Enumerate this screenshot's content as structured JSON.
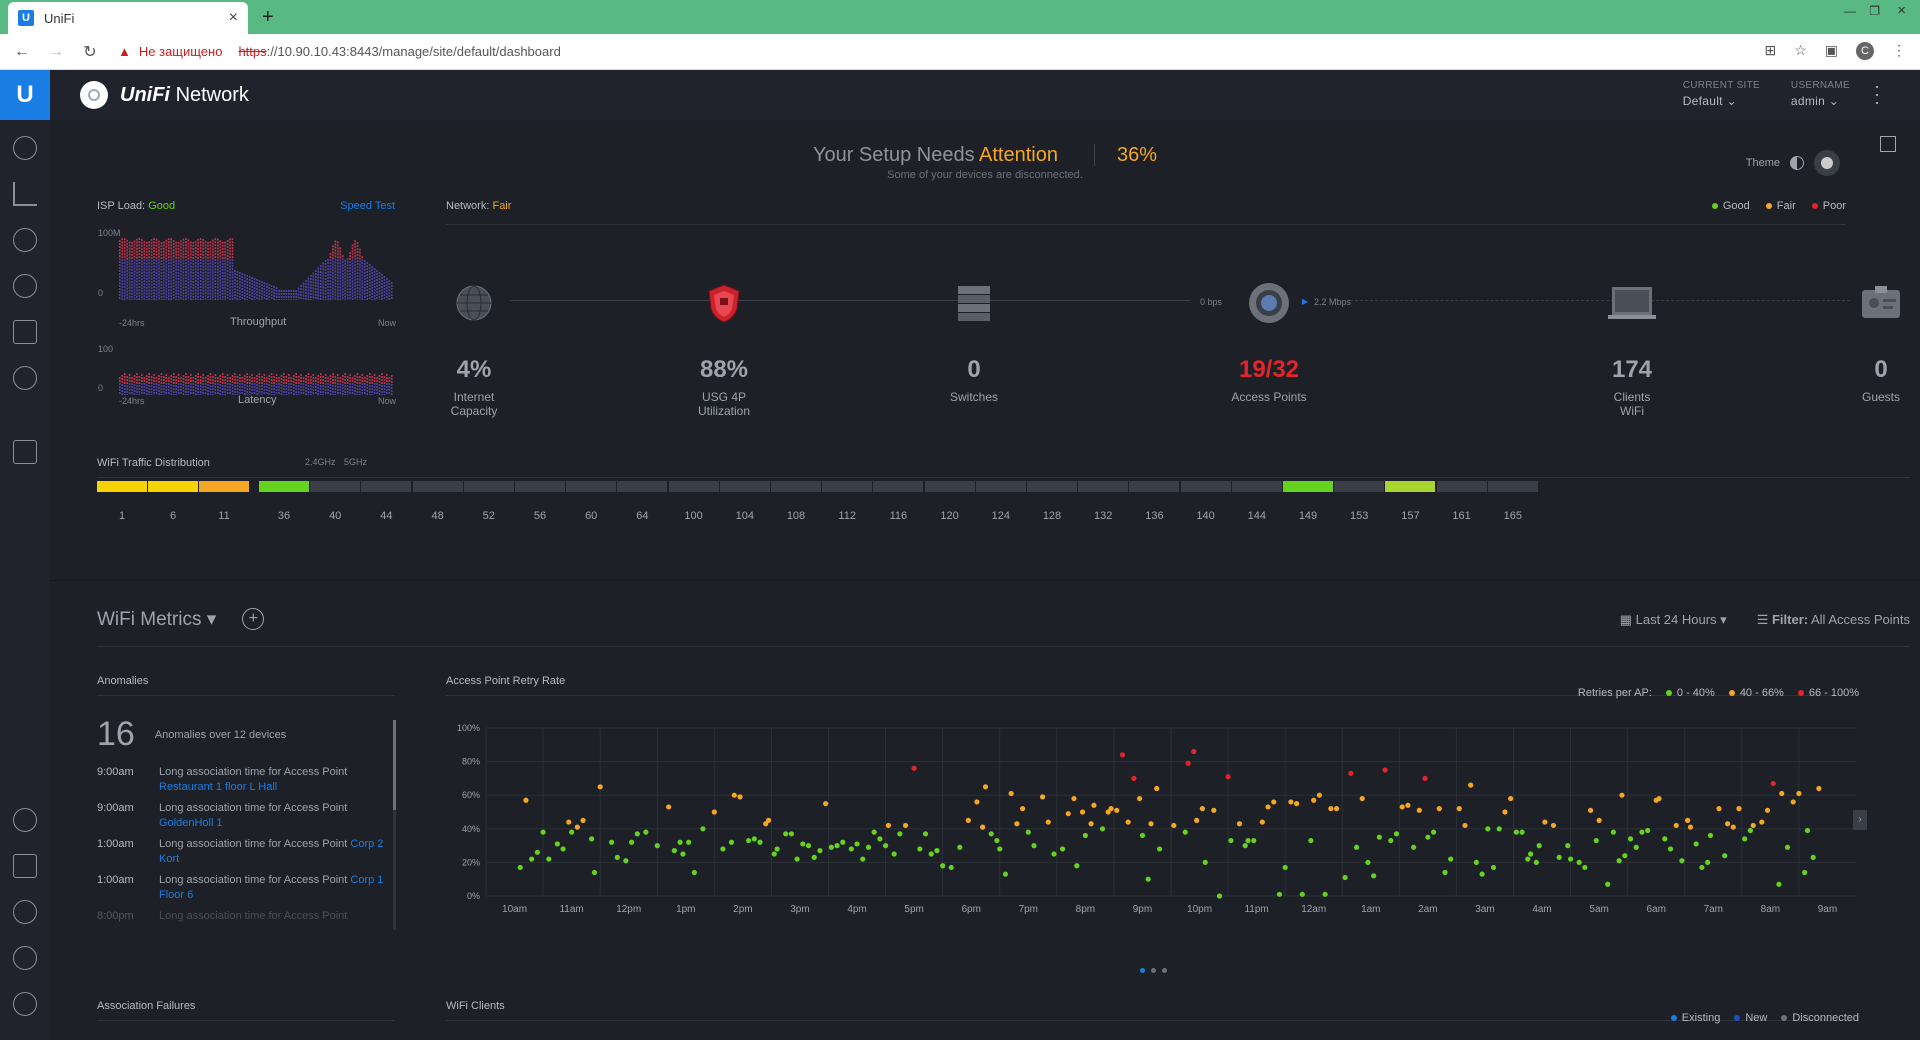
{
  "browser": {
    "tab_title": "UniFi",
    "favicon_letter": "U",
    "insecure_label": "Не защищено",
    "url_scheme": "https",
    "url_rest": "://10.90.10.43:8443/manage/site/default/dashboard",
    "profile_letter": "C"
  },
  "app": {
    "brand": "UniFi",
    "product": "Network",
    "current_site_label": "CURRENT SITE",
    "current_site_value": "Default",
    "username_label": "USERNAME",
    "username_value": "admin"
  },
  "attention": {
    "title_prefix": "Your Setup Needs",
    "title_highlight": "Attention",
    "percent": "36%",
    "subtitle": "Some of your devices are disconnected.",
    "theme_label": "Theme"
  },
  "isp": {
    "label": "ISP Load:",
    "status": "Good",
    "speed_test": "Speed Test",
    "throughput_max": "100M",
    "throughput_min": "0",
    "latency_max": "100",
    "latency_min": "0",
    "start": "-24hrs",
    "end": "Now",
    "throughput_label": "Throughput",
    "latency_label": "Latency"
  },
  "network": {
    "label": "Network:",
    "status": "Fair",
    "legend": [
      "Good",
      "Fair",
      "Poor"
    ],
    "rate_down": "0 bps",
    "rate_up": "2.2 Mbps",
    "nodes": [
      {
        "value": "4%",
        "label1": "Internet",
        "label2": "Capacity"
      },
      {
        "value": "88%",
        "label1": "USG 4P",
        "label2": "Utilization"
      },
      {
        "value": "0",
        "label1": "Switches",
        "label2": ""
      },
      {
        "value": "19/32",
        "label1": "Access Points",
        "label2": ""
      },
      {
        "value": "174",
        "label1": "Clients",
        "label2": "WiFi"
      },
      {
        "value": "0",
        "label1": "Guests",
        "label2": ""
      }
    ]
  },
  "wifi_traffic": {
    "title": "WiFi Traffic Distribution",
    "band_24": "2.4GHz",
    "band_5": "5GHz",
    "channels_24": [
      "1",
      "6",
      "11"
    ],
    "channels_5": [
      "36",
      "40",
      "44",
      "48",
      "52",
      "56",
      "60",
      "64",
      "100",
      "104",
      "108",
      "112",
      "116",
      "120",
      "124",
      "128",
      "132",
      "136",
      "140",
      "144",
      "149",
      "153",
      "157",
      "161",
      "165"
    ]
  },
  "wifi_metrics": {
    "title": "WiFi Metrics",
    "range": "Last 24 Hours",
    "filter_label": "Filter:",
    "filter_value": "All Access Points"
  },
  "anomalies": {
    "title": "Anomalies",
    "count": "16",
    "summary": "Anomalies over 12 devices",
    "items": [
      {
        "time": "9:00am",
        "text": "Long association time for Access Point",
        "link": "Restaurant 1 floor L Hall"
      },
      {
        "time": "9:00am",
        "text": "Long association time for Access Point",
        "link": "GoldenHoll 1"
      },
      {
        "time": "1:00am",
        "text": "Long association time for Access Point",
        "link": "Corp 2 Kort"
      },
      {
        "time": "1:00am",
        "text": "Long association time for Access Point",
        "link": "Corp 1 Floor 6"
      },
      {
        "time": "8:00pm",
        "text": "Long association time for Access Point",
        "link": ""
      }
    ]
  },
  "association_failures": {
    "title": "Association Failures"
  },
  "wifi_clients": {
    "title": "WiFi Clients",
    "legend": [
      "Existing",
      "New",
      "Disconnected"
    ]
  },
  "chart_data": {
    "type": "scatter",
    "title": "Access Point Retry Rate",
    "legend_title": "Retries per AP:",
    "legend": [
      "0 - 40%",
      "40 - 66%",
      "66 - 100%"
    ],
    "colors": {
      "low": "#64d21e",
      "mid": "#f5a623",
      "high": "#e3242b"
    },
    "y_ticks": [
      "100%",
      "80%",
      "60%",
      "40%",
      "20%",
      "0%"
    ],
    "ylim": [
      0,
      100
    ],
    "x_ticks": [
      "10am",
      "11am",
      "12pm",
      "1pm",
      "2pm",
      "3pm",
      "4pm",
      "5pm",
      "6pm",
      "7pm",
      "8pm",
      "9pm",
      "10pm",
      "11pm",
      "12am",
      "1am",
      "2am",
      "3am",
      "4am",
      "5am",
      "6am",
      "7am",
      "8am",
      "9am"
    ],
    "points": [
      [
        0.1,
        17
      ],
      [
        0.2,
        57
      ],
      [
        0.3,
        22
      ],
      [
        0.4,
        26
      ],
      [
        0.5,
        38
      ],
      [
        0.6,
        22
      ],
      [
        0.75,
        31
      ],
      [
        0.85,
        28
      ],
      [
        1.0,
        38
      ],
      [
        1.1,
        41
      ],
      [
        1.2,
        45
      ],
      [
        0.95,
        44
      ],
      [
        1.35,
        34
      ],
      [
        1.4,
        14
      ],
      [
        1.5,
        65
      ],
      [
        1.7,
        32
      ],
      [
        1.8,
        23
      ],
      [
        1.95,
        21
      ],
      [
        2.05,
        32
      ],
      [
        2.15,
        37
      ],
      [
        2.3,
        38
      ],
      [
        2.5,
        30
      ],
      [
        2.7,
        53
      ],
      [
        2.8,
        27
      ],
      [
        2.9,
        32
      ],
      [
        2.95,
        25
      ],
      [
        3.05,
        32
      ],
      [
        3.15,
        14
      ],
      [
        3.3,
        40
      ],
      [
        3.5,
        50
      ],
      [
        3.65,
        28
      ],
      [
        3.8,
        32
      ],
      [
        3.85,
        60
      ],
      [
        3.95,
        59
      ],
      [
        4.1,
        33
      ],
      [
        4.2,
        34
      ],
      [
        4.3,
        32
      ],
      [
        4.4,
        43
      ],
      [
        4.45,
        45
      ],
      [
        4.55,
        25
      ],
      [
        4.6,
        28
      ],
      [
        4.75,
        37
      ],
      [
        4.85,
        37
      ],
      [
        4.95,
        22
      ],
      [
        5.05,
        31
      ],
      [
        5.15,
        30
      ],
      [
        5.25,
        23
      ],
      [
        5.35,
        27
      ],
      [
        5.45,
        55
      ],
      [
        5.55,
        29
      ],
      [
        5.65,
        30
      ],
      [
        5.75,
        32
      ],
      [
        5.9,
        28
      ],
      [
        6.0,
        31
      ],
      [
        6.1,
        22
      ],
      [
        6.2,
        29
      ],
      [
        6.3,
        38
      ],
      [
        6.4,
        34
      ],
      [
        6.5,
        30
      ],
      [
        6.55,
        42
      ],
      [
        6.65,
        25
      ],
      [
        6.75,
        37
      ],
      [
        6.85,
        42
      ],
      [
        7.0,
        76
      ],
      [
        7.1,
        28
      ],
      [
        7.2,
        37
      ],
      [
        7.3,
        25
      ],
      [
        7.4,
        27
      ],
      [
        7.5,
        18
      ],
      [
        7.65,
        17
      ],
      [
        7.8,
        29
      ],
      [
        7.95,
        45
      ],
      [
        8.1,
        56
      ],
      [
        8.2,
        41
      ],
      [
        8.25,
        65
      ],
      [
        8.35,
        37
      ],
      [
        8.45,
        33
      ],
      [
        8.5,
        28
      ],
      [
        8.6,
        13
      ],
      [
        8.7,
        61
      ],
      [
        8.8,
        43
      ],
      [
        8.9,
        52
      ],
      [
        9.0,
        38
      ],
      [
        9.1,
        30
      ],
      [
        9.25,
        59
      ],
      [
        9.35,
        44
      ],
      [
        9.45,
        25
      ],
      [
        9.6,
        28
      ],
      [
        9.7,
        49
      ],
      [
        9.8,
        58
      ],
      [
        9.85,
        18
      ],
      [
        9.95,
        50
      ],
      [
        10.0,
        36
      ],
      [
        10.1,
        43
      ],
      [
        10.15,
        54
      ],
      [
        10.3,
        40
      ],
      [
        10.4,
        50
      ],
      [
        10.45,
        52
      ],
      [
        10.55,
        51
      ],
      [
        10.65,
        84
      ],
      [
        10.75,
        44
      ],
      [
        10.85,
        70
      ],
      [
        10.95,
        58
      ],
      [
        11.0,
        36
      ],
      [
        11.1,
        10
      ],
      [
        11.15,
        43
      ],
      [
        11.25,
        64
      ],
      [
        11.3,
        28
      ],
      [
        11.55,
        42
      ],
      [
        11.75,
        38
      ],
      [
        11.8,
        79
      ],
      [
        11.9,
        86
      ],
      [
        11.95,
        45
      ],
      [
        12.05,
        52
      ],
      [
        12.1,
        20
      ],
      [
        12.25,
        51
      ],
      [
        12.35,
        0
      ],
      [
        12.5,
        71
      ],
      [
        12.55,
        33
      ],
      [
        12.7,
        43
      ],
      [
        12.8,
        30
      ],
      [
        12.85,
        33
      ],
      [
        12.95,
        33
      ],
      [
        13.1,
        44
      ],
      [
        13.2,
        53
      ],
      [
        13.3,
        56
      ],
      [
        13.4,
        1
      ],
      [
        13.5,
        17
      ],
      [
        13.6,
        56
      ],
      [
        13.7,
        55
      ],
      [
        13.8,
        1
      ],
      [
        13.95,
        33
      ],
      [
        14.0,
        57
      ],
      [
        14.1,
        60
      ],
      [
        14.2,
        1
      ],
      [
        14.3,
        52
      ],
      [
        14.4,
        52
      ],
      [
        14.55,
        11
      ],
      [
        14.65,
        73
      ],
      [
        14.75,
        29
      ],
      [
        14.85,
        58
      ],
      [
        14.95,
        20
      ],
      [
        15.05,
        12
      ],
      [
        15.15,
        35
      ],
      [
        15.25,
        75
      ],
      [
        15.35,
        33
      ],
      [
        15.45,
        37
      ],
      [
        15.55,
        53
      ],
      [
        15.65,
        54
      ],
      [
        15.75,
        29
      ],
      [
        15.85,
        51
      ],
      [
        15.95,
        70
      ],
      [
        16.0,
        35
      ],
      [
        16.1,
        38
      ],
      [
        16.2,
        52
      ],
      [
        16.3,
        14
      ],
      [
        16.4,
        22
      ],
      [
        16.55,
        52
      ],
      [
        16.65,
        42
      ],
      [
        16.75,
        66
      ],
      [
        16.85,
        20
      ],
      [
        16.95,
        13
      ],
      [
        17.05,
        40
      ],
      [
        17.15,
        17
      ],
      [
        17.25,
        40
      ],
      [
        17.35,
        50
      ],
      [
        17.45,
        58
      ],
      [
        17.55,
        38
      ],
      [
        17.65,
        38
      ],
      [
        17.75,
        22
      ],
      [
        17.8,
        25
      ],
      [
        17.9,
        20
      ],
      [
        17.95,
        30
      ],
      [
        18.05,
        44
      ],
      [
        18.2,
        42
      ],
      [
        18.3,
        23
      ],
      [
        18.45,
        30
      ],
      [
        18.5,
        22
      ],
      [
        18.65,
        20
      ],
      [
        18.75,
        17
      ],
      [
        18.85,
        51
      ],
      [
        18.95,
        33
      ],
      [
        19.0,
        45
      ],
      [
        19.15,
        7
      ],
      [
        19.25,
        38
      ],
      [
        19.35,
        21
      ],
      [
        19.4,
        60
      ],
      [
        19.45,
        24
      ],
      [
        19.55,
        34
      ],
      [
        19.65,
        29
      ],
      [
        19.75,
        38
      ],
      [
        19.85,
        39
      ],
      [
        20.0,
        57
      ],
      [
        20.05,
        58
      ],
      [
        20.15,
        34
      ],
      [
        20.25,
        28
      ],
      [
        20.35,
        42
      ],
      [
        20.45,
        21
      ],
      [
        20.55,
        45
      ],
      [
        20.6,
        41
      ],
      [
        20.7,
        31
      ],
      [
        20.8,
        17
      ],
      [
        20.9,
        20
      ],
      [
        20.95,
        36
      ],
      [
        21.1,
        52
      ],
      [
        21.2,
        24
      ],
      [
        21.25,
        43
      ],
      [
        21.35,
        41
      ],
      [
        21.45,
        52
      ],
      [
        21.55,
        34
      ],
      [
        21.65,
        39
      ],
      [
        21.7,
        42
      ],
      [
        21.85,
        44
      ],
      [
        21.95,
        51
      ],
      [
        22.05,
        67
      ],
      [
        22.15,
        7
      ],
      [
        22.2,
        61
      ],
      [
        22.3,
        29
      ],
      [
        22.4,
        56
      ],
      [
        22.5,
        61
      ],
      [
        22.6,
        14
      ],
      [
        22.65,
        39
      ],
      [
        22.75,
        23
      ],
      [
        22.85,
        64
      ]
    ]
  }
}
